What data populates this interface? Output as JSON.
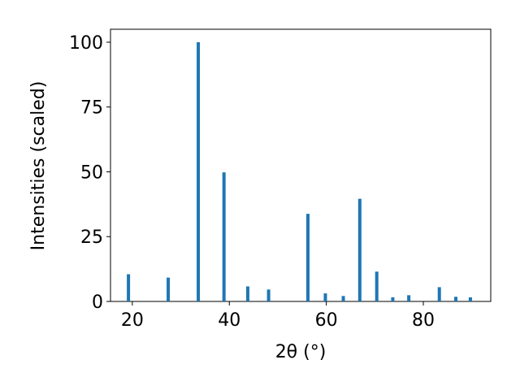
{
  "chart_data": {
    "type": "bar",
    "x": [
      19.2,
      27.4,
      33.6,
      38.9,
      43.8,
      48.1,
      56.2,
      59.8,
      63.5,
      66.9,
      70.4,
      73.7,
      77.0,
      83.3,
      86.7,
      89.7
    ],
    "values": [
      10.5,
      9.2,
      100,
      49.8,
      5.8,
      4.6,
      33.8,
      3.1,
      2.1,
      39.6,
      11.5,
      1.6,
      2.4,
      5.5,
      1.8,
      1.6
    ],
    "color": "#1f77b4",
    "xlabel": "2θ (°)",
    "ylabel": "Intensities (scaled)",
    "xlim": [
      15.5,
      93.9
    ],
    "ylim": [
      0,
      105
    ],
    "xticks": [
      20,
      40,
      60,
      80
    ],
    "yticks": [
      0,
      25,
      50,
      75,
      100
    ],
    "grid": false
  }
}
